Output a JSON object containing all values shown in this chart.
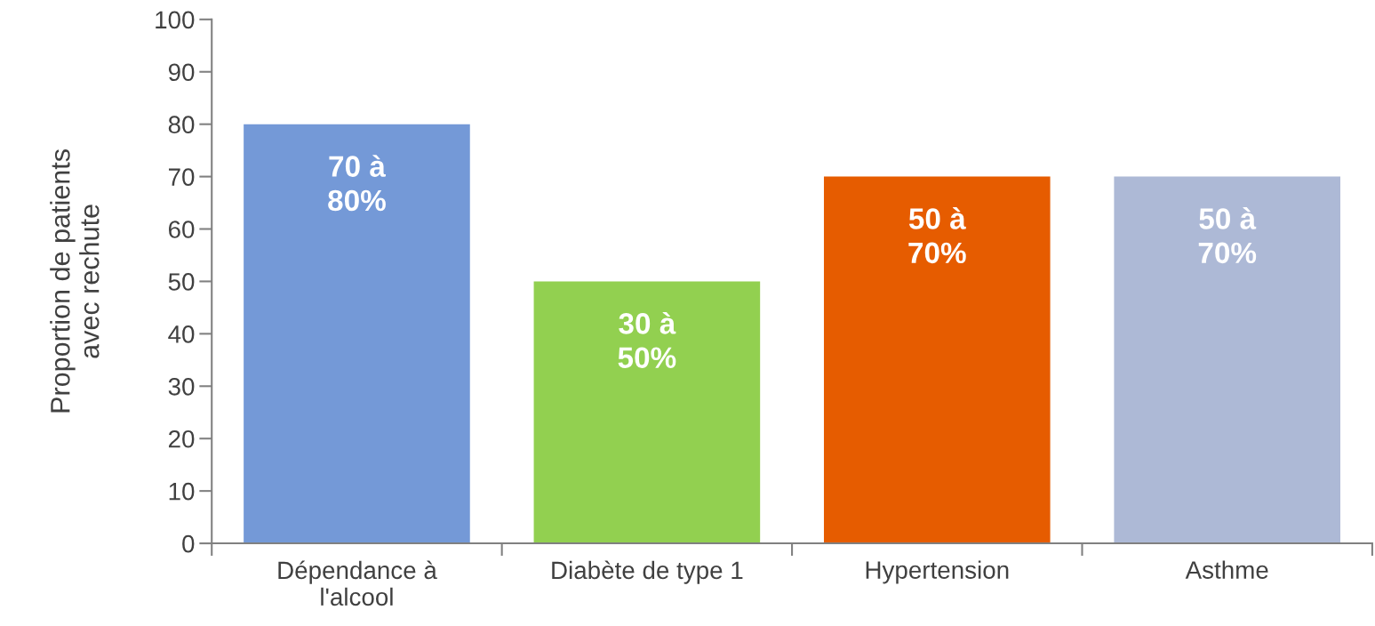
{
  "chart_data": {
    "type": "bar",
    "ylabel": "Proportion de patients\navec rechute",
    "categories": [
      "Dépendance à\nl'alcool",
      "Diabète de type 1",
      "Hypertension",
      "Asthme"
    ],
    "values": [
      80,
      50,
      70,
      70
    ],
    "colors": [
      "#7499d7",
      "#92d050",
      "#e65c00",
      "#adb9d6"
    ],
    "value_labels": [
      "70 à\n80%",
      "30 à\n50%",
      "50 à\n70%",
      "50 à\n70%"
    ],
    "ylim": [
      0,
      100
    ],
    "yticks": [
      0,
      10,
      20,
      30,
      40,
      50,
      60,
      70,
      80,
      90,
      100
    ],
    "grid": false,
    "legend": false
  }
}
